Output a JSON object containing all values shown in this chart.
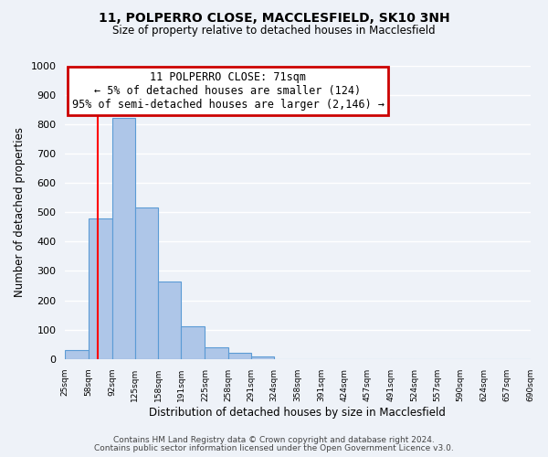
{
  "title": "11, POLPERRO CLOSE, MACCLESFIELD, SK10 3NH",
  "subtitle": "Size of property relative to detached houses in Macclesfield",
  "xlabel": "Distribution of detached houses by size in Macclesfield",
  "ylabel": "Number of detached properties",
  "bin_edges": [
    25,
    58,
    92,
    125,
    158,
    191,
    225,
    258,
    291,
    324,
    358,
    391,
    424,
    457,
    491,
    524,
    557,
    590,
    624,
    657,
    690
  ],
  "bin_labels": [
    "25sqm",
    "58sqm",
    "92sqm",
    "125sqm",
    "158sqm",
    "191sqm",
    "225sqm",
    "258sqm",
    "291sqm",
    "324sqm",
    "358sqm",
    "391sqm",
    "424sqm",
    "457sqm",
    "491sqm",
    "524sqm",
    "557sqm",
    "590sqm",
    "624sqm",
    "657sqm",
    "690sqm"
  ],
  "counts": [
    30,
    480,
    820,
    515,
    263,
    110,
    40,
    20,
    10,
    0,
    0,
    0,
    0,
    0,
    0,
    0,
    0,
    0,
    0,
    0
  ],
  "bar_color": "#aec6e8",
  "bar_edge_color": "#5b9bd5",
  "red_line_x": 71,
  "annotation_title": "11 POLPERRO CLOSE: 71sqm",
  "annotation_line1": "← 5% of detached houses are smaller (124)",
  "annotation_line2": "95% of semi-detached houses are larger (2,146) →",
  "annotation_box_color": "#ffffff",
  "annotation_box_edge_color": "#cc0000",
  "ylim": [
    0,
    1000
  ],
  "yticks": [
    0,
    100,
    200,
    300,
    400,
    500,
    600,
    700,
    800,
    900,
    1000
  ],
  "footer1": "Contains HM Land Registry data © Crown copyright and database right 2024.",
  "footer2": "Contains public sector information licensed under the Open Government Licence v3.0.",
  "bg_color": "#eef2f8",
  "grid_color": "#ffffff"
}
